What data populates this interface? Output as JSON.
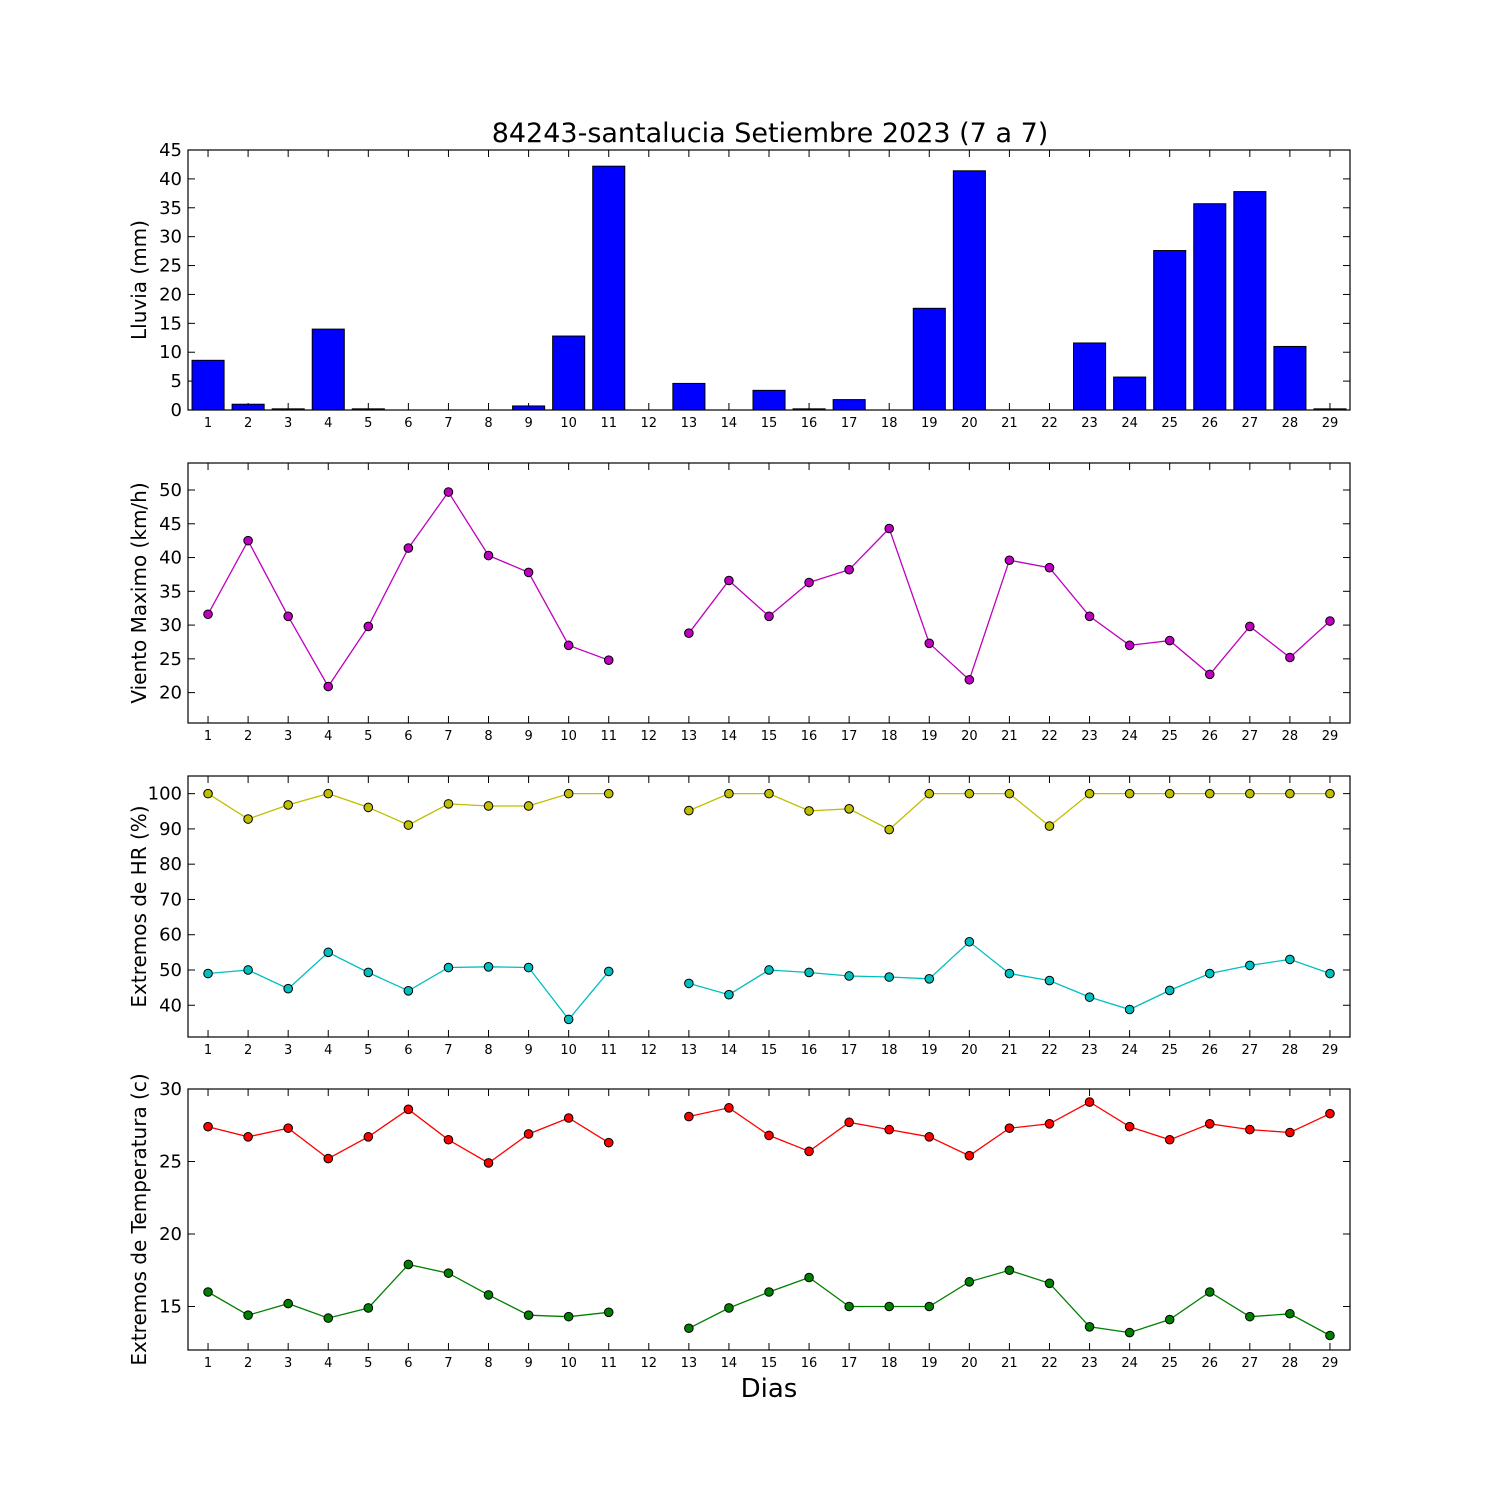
{
  "figure": {
    "title": "84243-santalucia Setiembre 2023  (7 a 7)",
    "xlabel": "Dias"
  },
  "colors": {
    "rain": "#0000ff",
    "wind": "#bf00bf",
    "hr_max": "#bfbf00",
    "hr_min": "#00bfbf",
    "temp_max": "#ff0000",
    "temp_min": "#008000"
  },
  "chart_data": [
    {
      "type": "bar",
      "ylabel": "Lluvia (mm)",
      "ylim": [
        0,
        45
      ],
      "yticks": [
        0,
        5,
        10,
        15,
        20,
        25,
        30,
        35,
        40,
        45
      ],
      "categories": [
        1,
        2,
        3,
        4,
        5,
        6,
        7,
        8,
        9,
        10,
        11,
        12,
        13,
        14,
        15,
        16,
        17,
        18,
        19,
        20,
        21,
        22,
        23,
        24,
        25,
        26,
        27,
        28,
        29
      ],
      "values": [
        8.6,
        1.0,
        0.2,
        14.0,
        0.2,
        0,
        0,
        0,
        0.7,
        12.8,
        42.2,
        0,
        4.6,
        0,
        3.4,
        0.2,
        1.8,
        0,
        17.6,
        41.4,
        0,
        0,
        11.6,
        5.7,
        27.6,
        35.7,
        37.8,
        11.0,
        0.2
      ],
      "grid": false
    },
    {
      "type": "line",
      "ylabel": "Viento Maximo (km/h)",
      "ylim": [
        15.5,
        54
      ],
      "yticks": [
        20,
        25,
        30,
        35,
        40,
        45,
        50
      ],
      "x": [
        1,
        2,
        3,
        4,
        5,
        6,
        7,
        8,
        9,
        10,
        11,
        12,
        13,
        14,
        15,
        16,
        17,
        18,
        19,
        20,
        21,
        22,
        23,
        24,
        25,
        26,
        27,
        28,
        29
      ],
      "series": [
        {
          "values": [
            31.6,
            42.5,
            31.3,
            20.9,
            29.8,
            41.4,
            49.7,
            40.3,
            37.8,
            27.0,
            24.8,
            null,
            28.8,
            36.6,
            31.3,
            36.3,
            38.2,
            44.3,
            27.3,
            21.9,
            39.6,
            38.5,
            31.3,
            27.0,
            27.7,
            22.7,
            29.8,
            25.2,
            30.6
          ]
        }
      ],
      "grid": false
    },
    {
      "type": "line",
      "ylabel": "Extremos de HR (%)",
      "ylim": [
        31,
        105
      ],
      "yticks": [
        40,
        50,
        60,
        70,
        80,
        90,
        100
      ],
      "x": [
        1,
        2,
        3,
        4,
        5,
        6,
        7,
        8,
        9,
        10,
        11,
        12,
        13,
        14,
        15,
        16,
        17,
        18,
        19,
        20,
        21,
        22,
        23,
        24,
        25,
        26,
        27,
        28,
        29
      ],
      "series": [
        {
          "values": [
            100,
            92.8,
            96.8,
            100,
            96.1,
            91.1,
            97.1,
            96.5,
            96.5,
            100,
            100,
            null,
            95.2,
            100,
            100,
            95.1,
            95.7,
            89.8,
            100,
            100,
            100,
            90.8,
            100,
            100,
            100,
            100,
            100,
            100,
            100
          ]
        },
        {
          "values": [
            49.0,
            50.0,
            44.7,
            55.0,
            49.3,
            44.1,
            50.7,
            50.9,
            50.7,
            36.0,
            49.6,
            null,
            46.2,
            43.0,
            50.0,
            49.3,
            48.3,
            48.0,
            47.5,
            58.0,
            49.0,
            47.0,
            42.3,
            38.8,
            44.2,
            49.0,
            51.3,
            53.0,
            49.0
          ]
        }
      ],
      "grid": false
    },
    {
      "type": "line",
      "ylabel": "Extremos de Temperatura (c)",
      "ylim": [
        12,
        30
      ],
      "yticks": [
        15,
        20,
        25,
        30
      ],
      "x": [
        1,
        2,
        3,
        4,
        5,
        6,
        7,
        8,
        9,
        10,
        11,
        12,
        13,
        14,
        15,
        16,
        17,
        18,
        19,
        20,
        21,
        22,
        23,
        24,
        25,
        26,
        27,
        28,
        29
      ],
      "series": [
        {
          "values": [
            27.4,
            26.7,
            27.3,
            25.2,
            26.7,
            28.6,
            26.5,
            24.9,
            26.9,
            28.0,
            26.3,
            null,
            28.1,
            28.7,
            26.8,
            25.7,
            27.7,
            27.2,
            26.7,
            25.4,
            27.3,
            27.6,
            29.1,
            27.4,
            26.5,
            27.6,
            27.2,
            27.0,
            28.3
          ]
        },
        {
          "values": [
            16.0,
            14.4,
            15.2,
            14.2,
            14.9,
            17.9,
            17.3,
            15.8,
            14.4,
            14.3,
            14.6,
            null,
            13.5,
            14.9,
            16.0,
            17.0,
            15.0,
            15.0,
            15.0,
            16.7,
            17.5,
            16.6,
            13.6,
            13.2,
            14.1,
            16.0,
            14.3,
            14.5,
            13.0
          ]
        }
      ],
      "grid": false
    }
  ]
}
